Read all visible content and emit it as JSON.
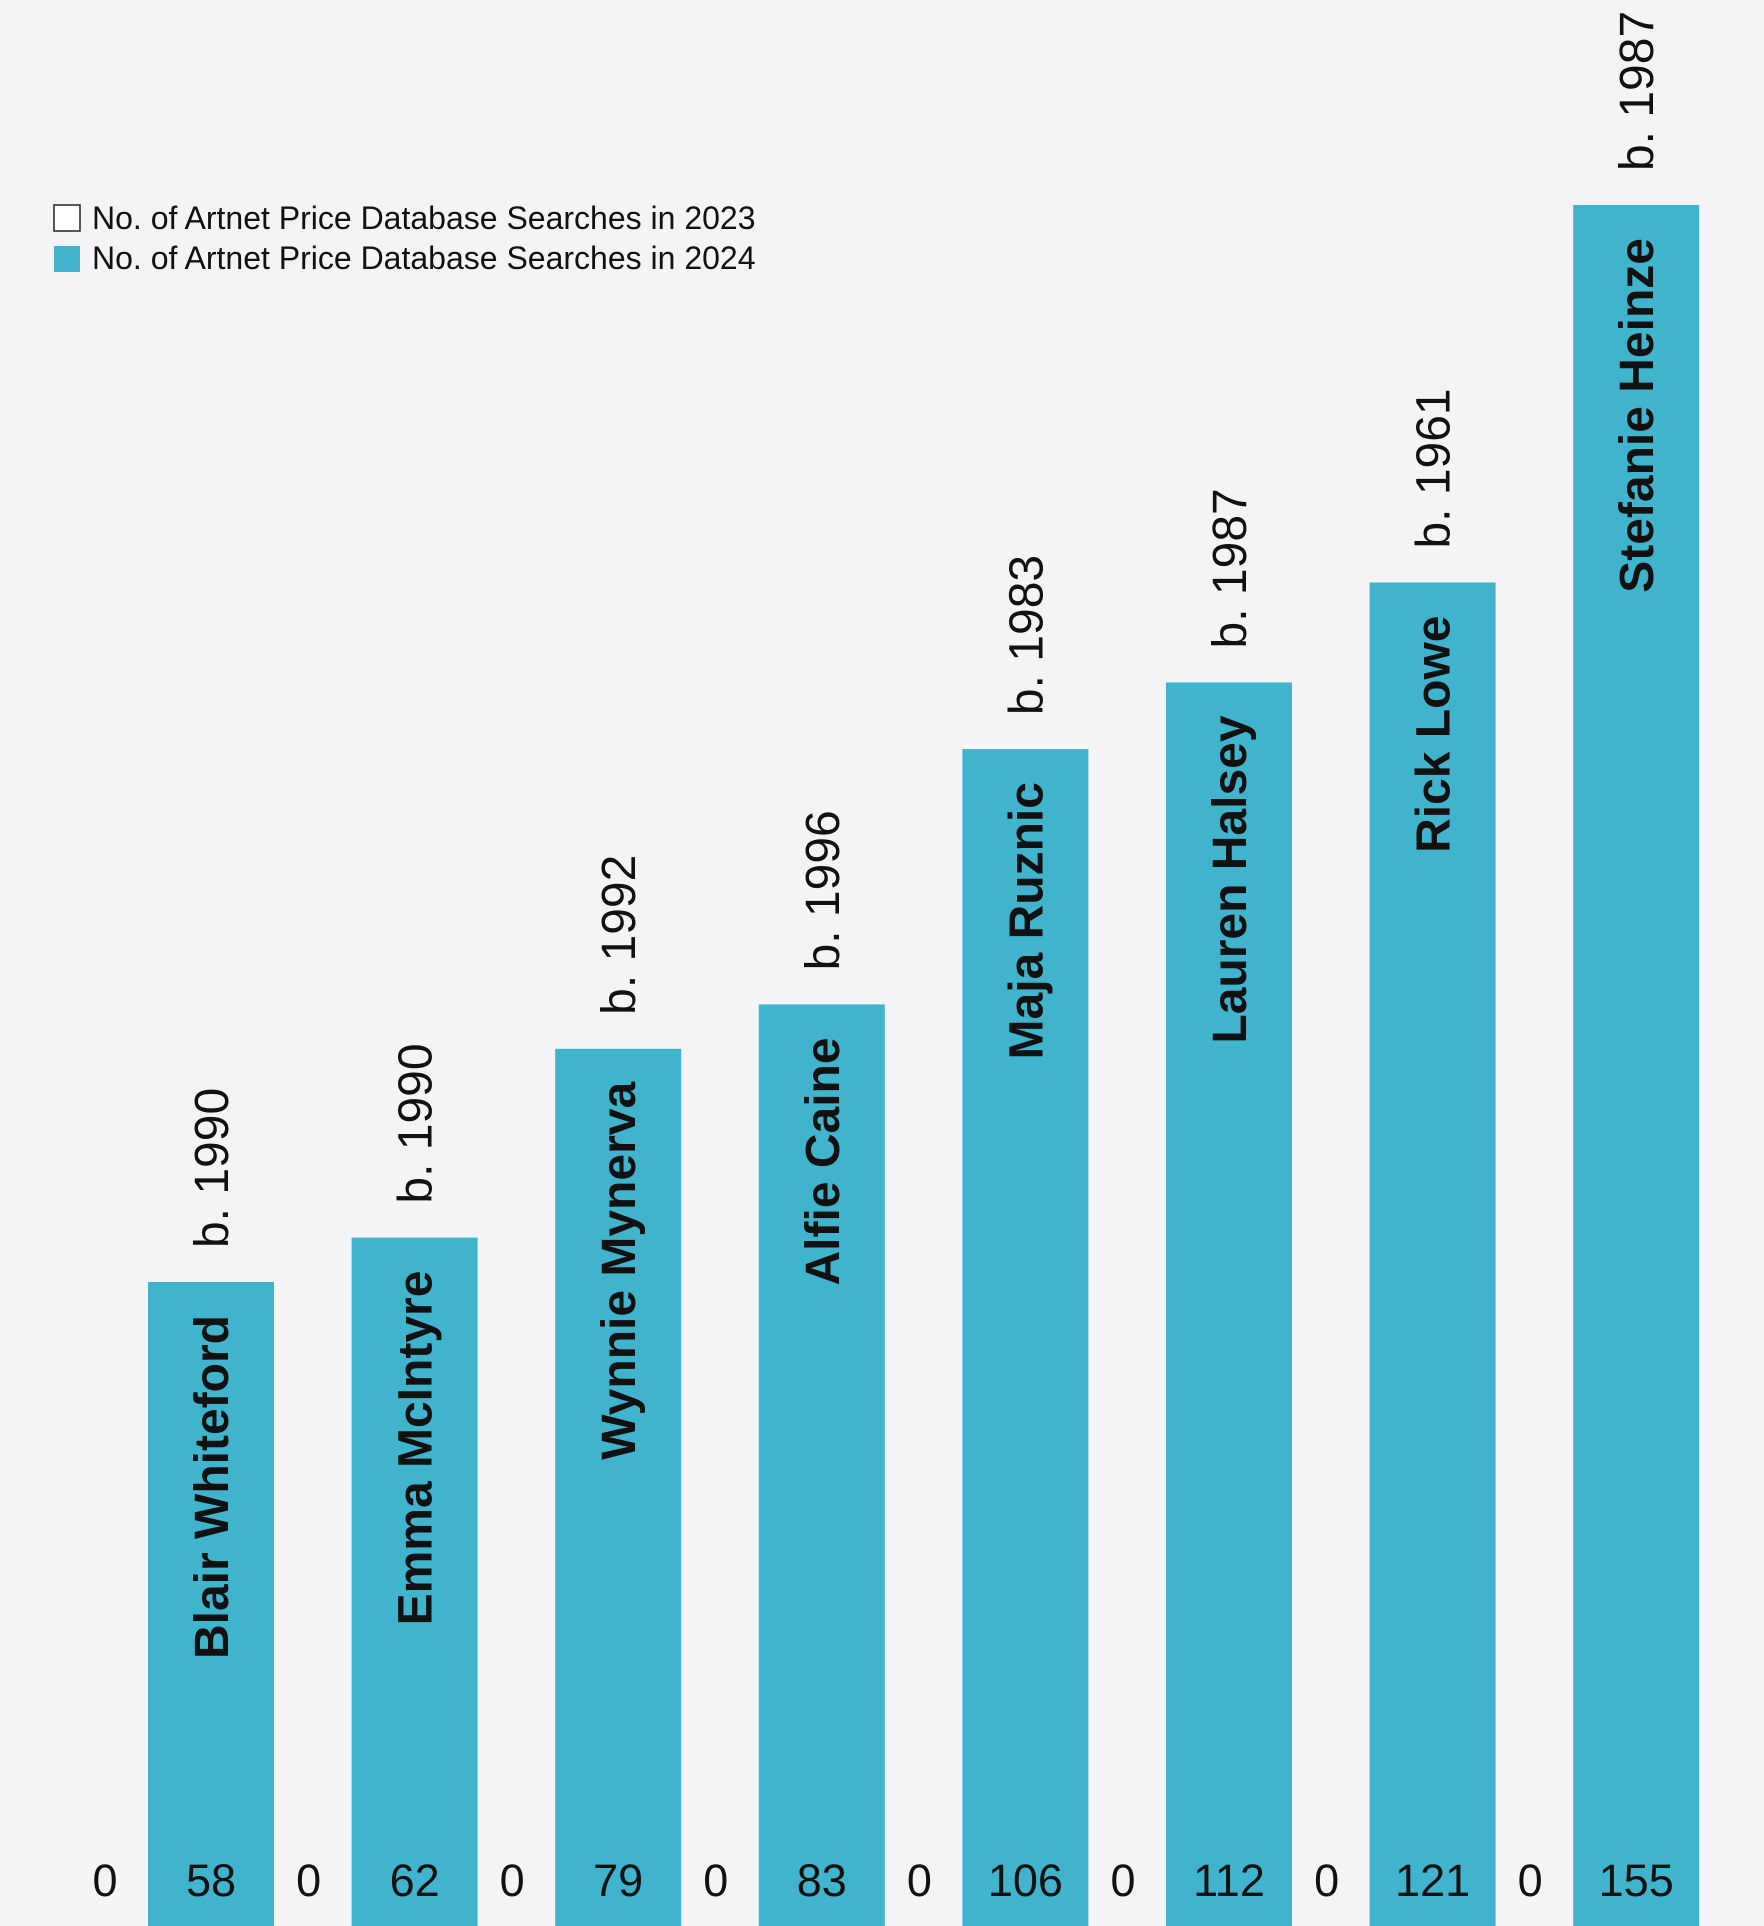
{
  "chart_data": {
    "type": "bar",
    "categories": [
      "Blair Whiteford",
      "Emma McIntyre",
      "Wynnie Mynerva",
      "Alfie Caine",
      "Maja Ruznic",
      "Lauren Halsey",
      "Rick Lowe",
      "Stefanie Heinze"
    ],
    "birth_labels": [
      "b. 1990",
      "b. 1990",
      "b. 1992",
      "b. 1996",
      "b. 1983",
      "b. 1987",
      "b. 1961",
      "b. 1987"
    ],
    "series": [
      {
        "name": "No. of Artnet Price Database Searches in 2023",
        "values": [
          0,
          0,
          0,
          0,
          0,
          0,
          0,
          0
        ],
        "value_labels": [
          "0",
          "0",
          "0",
          "0",
          "0",
          "0",
          "0",
          "0"
        ],
        "color": "#ffffff"
      },
      {
        "name": "No. of Artnet Price Database Searches in 2024",
        "values": [
          58,
          62,
          79,
          83,
          106,
          112,
          121,
          155
        ],
        "value_labels": [
          "58",
          "62",
          "79",
          "83",
          "106",
          "112",
          "121",
          "155"
        ],
        "color": "#40b3cd"
      }
    ],
    "legend_position": "top-left",
    "grid": false,
    "ylim": [
      0,
      155
    ]
  },
  "colors": {
    "background": "#f4f3f6",
    "bar": "#40b3cd",
    "text": "#111111"
  }
}
